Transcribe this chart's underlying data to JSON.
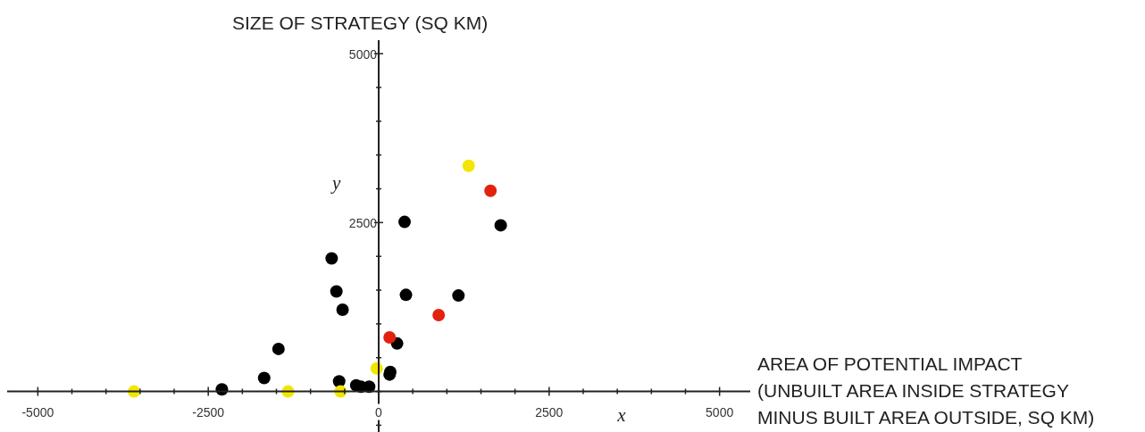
{
  "chart_data": {
    "type": "scatter",
    "xlabel": "AREA OF POTENTIAL IMPACT\n(UNBUILT AREA INSIDE STRATEGY\nMINUS BUILT AREA OUTSIDE, SQ KM)",
    "ylabel": "SIZE OF STRATEGY (SQ KM)",
    "annotations": [
      "y",
      "x"
    ],
    "series": [
      {
        "color": "#000000",
        "x": [
          -2300,
          -1680,
          -1470,
          -690,
          -620,
          -530,
          -580,
          -330,
          -260,
          -140,
          170,
          160,
          270,
          380,
          400,
          1170,
          1790
        ],
        "values": [
          30,
          200,
          630,
          1970,
          1480,
          1210,
          150,
          90,
          70,
          70,
          290,
          250,
          710,
          2510,
          1430,
          1420,
          2460
        ]
      },
      {
        "color": "#e2220f",
        "x": [
          160,
          880,
          1640
        ],
        "values": [
          800,
          1130,
          2970
        ]
      },
      {
        "color": "#f2e600",
        "x": [
          -3590,
          -1330,
          -560,
          -30,
          1320
        ],
        "values": [
          0,
          0,
          0,
          340,
          3340
        ]
      }
    ],
    "xlim": [
      -5450,
      5450
    ],
    "ylim": [
      -600,
      5200
    ],
    "xticks": [
      -5000,
      {
        "value": -4500,
        "label": null
      },
      {
        "value": -4000,
        "label": null
      },
      {
        "value": -3500,
        "label": null
      },
      {
        "value": -3000,
        "label": null
      },
      -2500,
      {
        "value": -2000,
        "label": null
      },
      {
        "value": -1500,
        "label": null
      },
      {
        "value": -1000,
        "label": null
      },
      {
        "value": -500,
        "label": null
      },
      0,
      {
        "value": 500,
        "label": null
      },
      {
        "value": 1000,
        "label": null
      },
      {
        "value": 1500,
        "label": null
      },
      {
        "value": 2000,
        "label": null
      },
      2500,
      {
        "value": 3000,
        "label": null
      },
      {
        "value": 3500,
        "label": null
      },
      {
        "value": 4000,
        "label": null
      },
      {
        "value": 4500,
        "label": null
      },
      5000
    ],
    "yticks": [
      {
        "value": -500,
        "label": null
      },
      {
        "value": 0,
        "label": null
      },
      {
        "value": 500,
        "label": null
      },
      {
        "value": 1000,
        "label": null
      },
      {
        "value": 1500,
        "label": null
      },
      {
        "value": 2000,
        "label": null
      },
      2500,
      {
        "value": 3000,
        "label": null
      },
      {
        "value": 3500,
        "label": null
      },
      {
        "value": 4000,
        "label": null
      },
      {
        "value": 4500,
        "label": null
      },
      5000
    ],
    "grid": false
  }
}
